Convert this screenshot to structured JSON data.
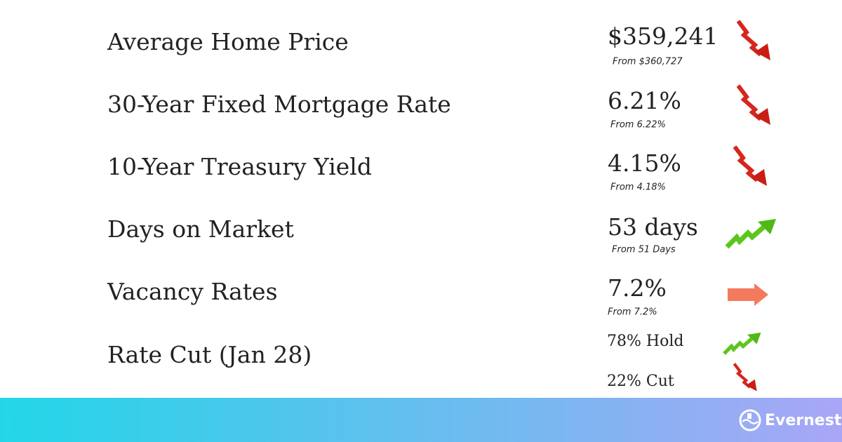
{
  "rows": [
    {
      "label": "Average Home Price",
      "value": "$359,241",
      "from": "From $360,727"
    },
    {
      "label": "30-Year Fixed Mortgage Rate",
      "value": "6.21%",
      "from": "From 6.22%"
    },
    {
      "label": "10-Year Treasury Yield",
      "value": "4.15%",
      "from": "From 4.18%"
    },
    {
      "label": "Days on Market",
      "value": "53 days",
      "from": "From 51 Days"
    },
    {
      "label": "Vacancy Rates",
      "value": "7.2%",
      "from": "From 7.2%"
    }
  ],
  "rate_cut": {
    "label": "Rate Cut (Jan 28)",
    "outcomes": [
      "78% Hold",
      "22% Cut"
    ]
  },
  "logo": "Evernest"
}
